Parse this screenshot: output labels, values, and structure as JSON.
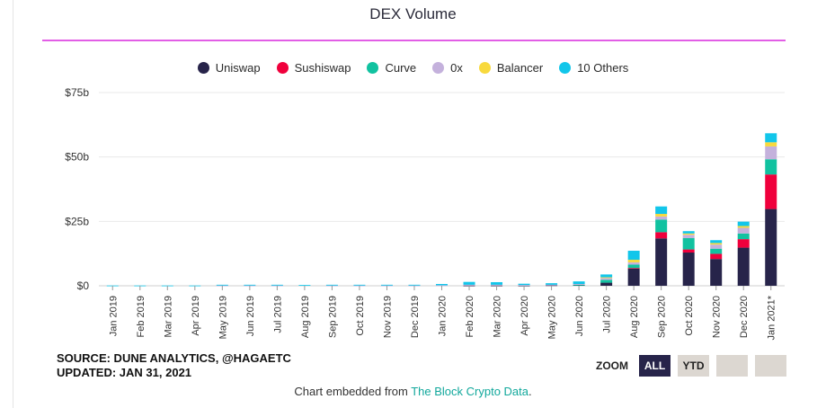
{
  "chart_data": {
    "type": "bar",
    "stacked": true,
    "title": "DEX Volume",
    "yticks": [
      "$0",
      "$25b",
      "$50b",
      "$75b"
    ],
    "ylim": [
      0,
      75
    ],
    "grid": true,
    "legend_position": "top",
    "categories": [
      "Jan 2019",
      "Feb 2019",
      "Mar 2019",
      "Apr 2019",
      "May 2019",
      "Jun 2019",
      "Jul 2019",
      "Aug 2019",
      "Sep 2019",
      "Oct 2019",
      "Nov 2019",
      "Dec 2019",
      "Jan 2020",
      "Feb 2020",
      "Mar 2020",
      "Apr 2020",
      "May 2020",
      "Jun 2020",
      "Jul 2020",
      "Aug 2020",
      "Sep 2020",
      "Oct 2020",
      "Nov 2020",
      "Dec 2020",
      "Jan 2021*"
    ],
    "series": [
      {
        "name": "Uniswap",
        "color": "#27244a",
        "values": [
          0,
          0,
          0,
          0,
          0,
          0,
          0,
          0,
          0,
          0,
          0,
          0,
          0,
          0.1,
          0.1,
          0.1,
          0.2,
          0.3,
          1.2,
          6.8,
          18.4,
          12.9,
          10.4,
          14.8,
          29.8
        ]
      },
      {
        "name": "Sushiswap",
        "color": "#f0003c",
        "values": [
          0,
          0,
          0,
          0,
          0,
          0,
          0,
          0,
          0,
          0,
          0,
          0,
          0,
          0,
          0,
          0,
          0,
          0,
          0,
          0.1,
          2.4,
          1.2,
          2.0,
          3.3,
          13.4
        ]
      },
      {
        "name": "Curve",
        "color": "#11c2a0",
        "values": [
          0,
          0,
          0,
          0,
          0,
          0,
          0,
          0,
          0,
          0,
          0,
          0,
          0,
          0,
          0,
          0,
          0,
          0.1,
          1.1,
          1.3,
          4.9,
          4.4,
          2.0,
          2.2,
          5.9
        ]
      },
      {
        "name": "0x",
        "color": "#c4b1dc",
        "values": [
          0,
          0,
          0,
          0,
          0.1,
          0.1,
          0.1,
          0,
          0.1,
          0.1,
          0.1,
          0.1,
          0.2,
          0.3,
          0.3,
          0.2,
          0.2,
          0.3,
          0.7,
          0.9,
          1.2,
          1.3,
          1.6,
          2.2,
          5.0
        ]
      },
      {
        "name": "Balancer",
        "color": "#f8d93d",
        "values": [
          0,
          0,
          0,
          0,
          0,
          0,
          0,
          0,
          0,
          0,
          0,
          0,
          0,
          0,
          0,
          0,
          0,
          0,
          0.3,
          1.0,
          1.0,
          0.5,
          0.6,
          0.7,
          1.6
        ]
      },
      {
        "name": "10 Others",
        "color": "#12c6ea",
        "values": [
          0.1,
          0.1,
          0.1,
          0.1,
          0.3,
          0.3,
          0.3,
          0.3,
          0.3,
          0.3,
          0.3,
          0.3,
          0.5,
          1.1,
          1.0,
          0.5,
          0.6,
          1.0,
          1.1,
          3.5,
          2.9,
          0.9,
          1.1,
          1.7,
          3.5
        ]
      }
    ]
  },
  "source_line1": "SOURCE: DUNE ANALYTICS, @HAGAETC",
  "source_line2": "UPDATED: JAN 31, 2021",
  "embed_prefix": "Chart embedded from ",
  "embed_link": "The Block Crypto Data",
  "embed_suffix": ".",
  "zoom": {
    "label": "ZOOM",
    "buttons": [
      "ALL",
      "YTD",
      "",
      ""
    ],
    "active": "ALL"
  }
}
